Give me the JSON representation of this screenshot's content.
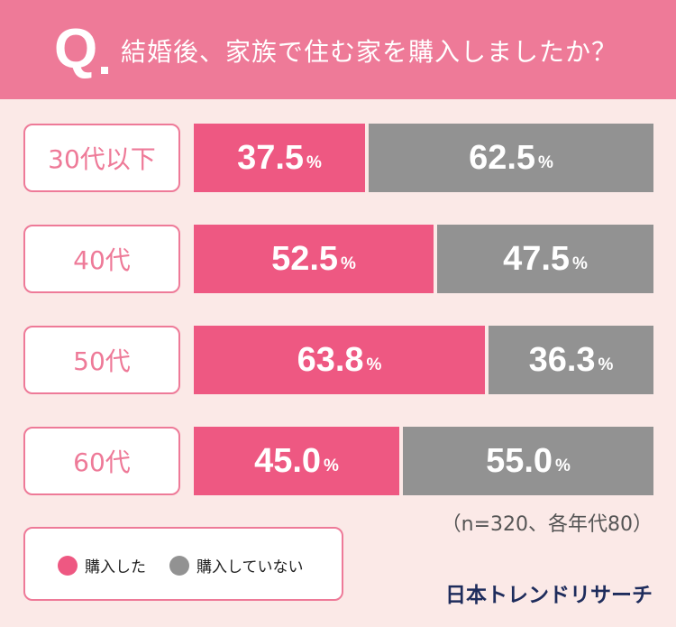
{
  "header": {
    "q_mark": "Q",
    "question": "結婚後、家族で住む家を購入しましたか？"
  },
  "colors": {
    "header_bg": "#ee7a98",
    "purchased": "#ee5882",
    "not_purchased": "#929292",
    "page_bg": "#fbe9e7",
    "brand": "#1e2c5c"
  },
  "chart_data": {
    "type": "bar",
    "orientation": "horizontal",
    "stacked": true,
    "normalized": true,
    "title": "結婚後、家族で住む家を購入しましたか？",
    "categories": [
      "30代以下",
      "40代",
      "50代",
      "60代"
    ],
    "series": [
      {
        "name": "購入した",
        "values": [
          37.5,
          52.5,
          63.8,
          45.0
        ]
      },
      {
        "name": "購入していない",
        "values": [
          62.5,
          47.5,
          36.3,
          55.0
        ]
      }
    ],
    "value_labels": [
      [
        "37.5",
        "62.5"
      ],
      [
        "52.5",
        "47.5"
      ],
      [
        "63.8",
        "36.3"
      ],
      [
        "45.0",
        "55.0"
      ]
    ],
    "unit": "%",
    "xlim": [
      0,
      100
    ],
    "grid": false,
    "legend_position": "bottom-left"
  },
  "note": "（n=320、各年代80）",
  "legend": {
    "items": [
      "購入した",
      "購入していない"
    ]
  },
  "brand": "日本トレンドリサーチ"
}
